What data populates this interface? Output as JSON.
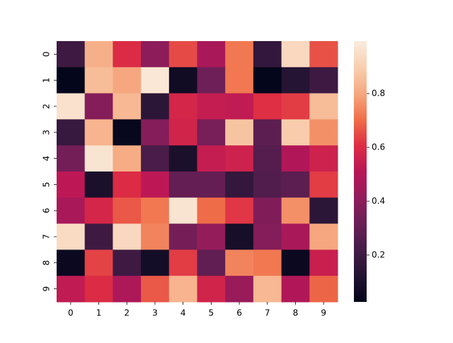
{
  "chart_data": {
    "type": "heatmap",
    "x_categories": [
      "0",
      "1",
      "2",
      "3",
      "4",
      "5",
      "6",
      "7",
      "8",
      "9"
    ],
    "y_categories": [
      "0",
      "1",
      "2",
      "3",
      "4",
      "5",
      "6",
      "7",
      "8",
      "9"
    ],
    "values": [
      [
        0.2,
        0.82,
        0.6,
        0.4,
        0.65,
        0.47,
        0.72,
        0.17,
        0.93,
        0.66
      ],
      [
        0.03,
        0.85,
        0.8,
        0.98,
        0.07,
        0.33,
        0.72,
        0.03,
        0.13,
        0.2
      ],
      [
        0.96,
        0.38,
        0.84,
        0.15,
        0.58,
        0.54,
        0.53,
        0.61,
        0.63,
        0.85
      ],
      [
        0.18,
        0.83,
        0.04,
        0.38,
        0.57,
        0.35,
        0.87,
        0.28,
        0.89,
        0.76
      ],
      [
        0.34,
        0.97,
        0.81,
        0.23,
        0.1,
        0.54,
        0.56,
        0.26,
        0.49,
        0.56
      ],
      [
        0.52,
        0.1,
        0.6,
        0.52,
        0.3,
        0.3,
        0.17,
        0.25,
        0.28,
        0.63
      ],
      [
        0.47,
        0.58,
        0.67,
        0.72,
        0.97,
        0.7,
        0.62,
        0.37,
        0.76,
        0.15
      ],
      [
        0.94,
        0.2,
        0.93,
        0.74,
        0.34,
        0.42,
        0.09,
        0.38,
        0.47,
        0.8
      ],
      [
        0.05,
        0.64,
        0.2,
        0.08,
        0.63,
        0.29,
        0.74,
        0.72,
        0.05,
        0.55
      ],
      [
        0.53,
        0.6,
        0.48,
        0.67,
        0.83,
        0.57,
        0.43,
        0.84,
        0.49,
        0.69
      ]
    ],
    "clim": [
      0.026,
      0.995
    ],
    "cticks": [
      0.2,
      0.4,
      0.6,
      0.8
    ],
    "colormap": [
      "#03051a",
      "#221331",
      "#451c47",
      "#6a1f56",
      "#921c5b",
      "#b91657",
      "#de2d44",
      "#f06f48",
      "#f6a880",
      "#f8cfb0",
      "#faebdd"
    ]
  }
}
